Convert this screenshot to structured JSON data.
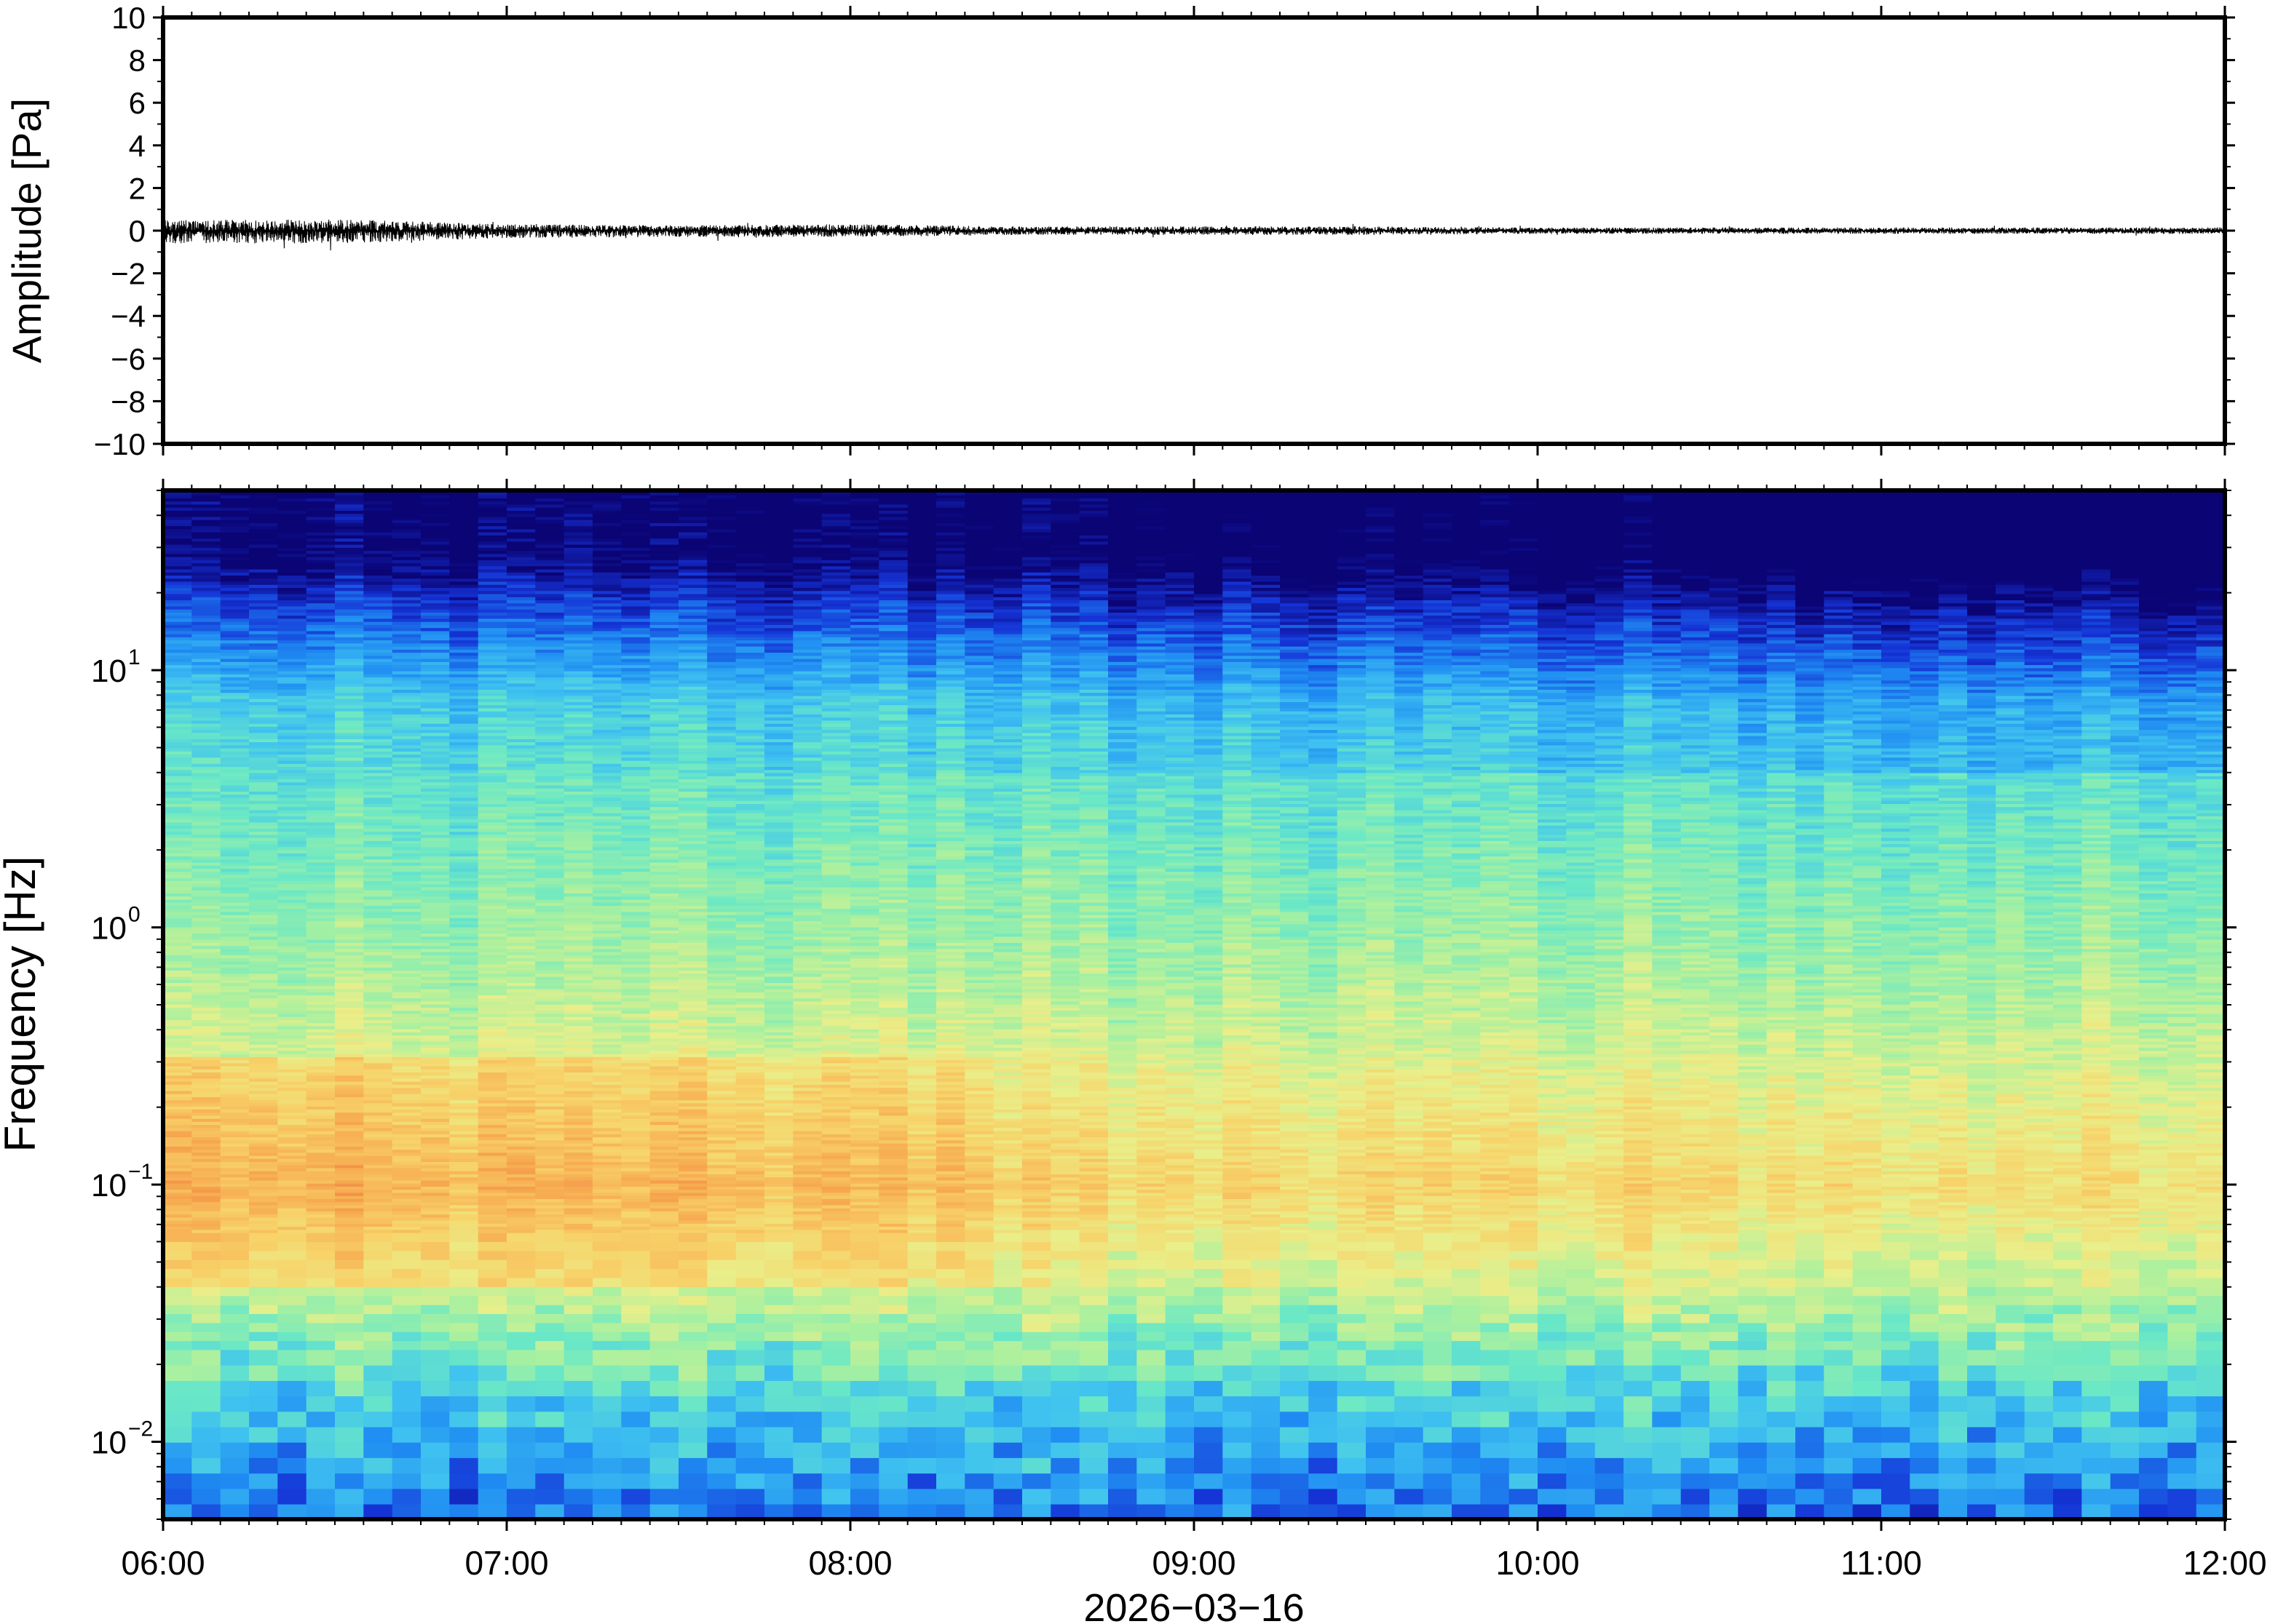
{
  "chart_data": [
    {
      "type": "line",
      "panel": "waveform",
      "ylabel": "Amplitude [Pa]",
      "ylim": [
        -10,
        10
      ],
      "yticks": [
        {
          "value": 10,
          "label": "10"
        },
        {
          "value": 8,
          "label": "8"
        },
        {
          "value": 6,
          "label": "6"
        },
        {
          "value": 4,
          "label": "4"
        },
        {
          "value": 2,
          "label": "2"
        },
        {
          "value": 0,
          "label": "0"
        },
        {
          "value": -2,
          "label": "−2"
        },
        {
          "value": -4,
          "label": "−4"
        },
        {
          "value": -6,
          "label": "−6"
        },
        {
          "value": -8,
          "label": "−8"
        },
        {
          "value": -10,
          "label": "−10"
        }
      ],
      "xlim": [
        "06:00",
        "12:00"
      ],
      "envelope": {
        "x": [
          "06:00",
          "06:30",
          "07:00",
          "07:30",
          "08:00",
          "08:30",
          "09:00",
          "09:30",
          "10:00",
          "10:30",
          "11:00",
          "11:30",
          "12:00"
        ],
        "upper": [
          0.5,
          0.55,
          0.3,
          0.25,
          0.3,
          0.2,
          0.2,
          0.2,
          0.15,
          0.15,
          0.15,
          0.15,
          0.15
        ],
        "lower": [
          -0.6,
          -0.6,
          -0.35,
          -0.3,
          -0.3,
          -0.2,
          -0.2,
          -0.2,
          -0.15,
          -0.15,
          -0.15,
          -0.15,
          -0.15
        ]
      },
      "color": "#000000"
    },
    {
      "type": "heatmap",
      "panel": "spectrogram",
      "ylabel": "Frequency [Hz]",
      "yscale": "log",
      "ylim": [
        0.005,
        50
      ],
      "yticks": [
        {
          "value": 10,
          "base": "10",
          "exp": "1"
        },
        {
          "value": 1,
          "base": "10",
          "exp": "0"
        },
        {
          "value": 0.1,
          "base": "10",
          "exp": "−1"
        },
        {
          "value": 0.01,
          "base": "10",
          "exp": "−2"
        }
      ],
      "xlabel": "2026−03−16",
      "xlim": [
        "06:00",
        "12:00"
      ],
      "xticks": [
        "06:00",
        "07:00",
        "08:00",
        "09:00",
        "10:00",
        "11:00",
        "12:00"
      ],
      "colormap": [
        "#0b0475",
        "#1533d6",
        "#1f8cf2",
        "#3fc2f0",
        "#6ae8c6",
        "#a8f0a0",
        "#e9ef8a",
        "#f7d36a",
        "#f7ad52",
        "#ef7d3e",
        "#d84a3a"
      ],
      "grid": false
    }
  ]
}
